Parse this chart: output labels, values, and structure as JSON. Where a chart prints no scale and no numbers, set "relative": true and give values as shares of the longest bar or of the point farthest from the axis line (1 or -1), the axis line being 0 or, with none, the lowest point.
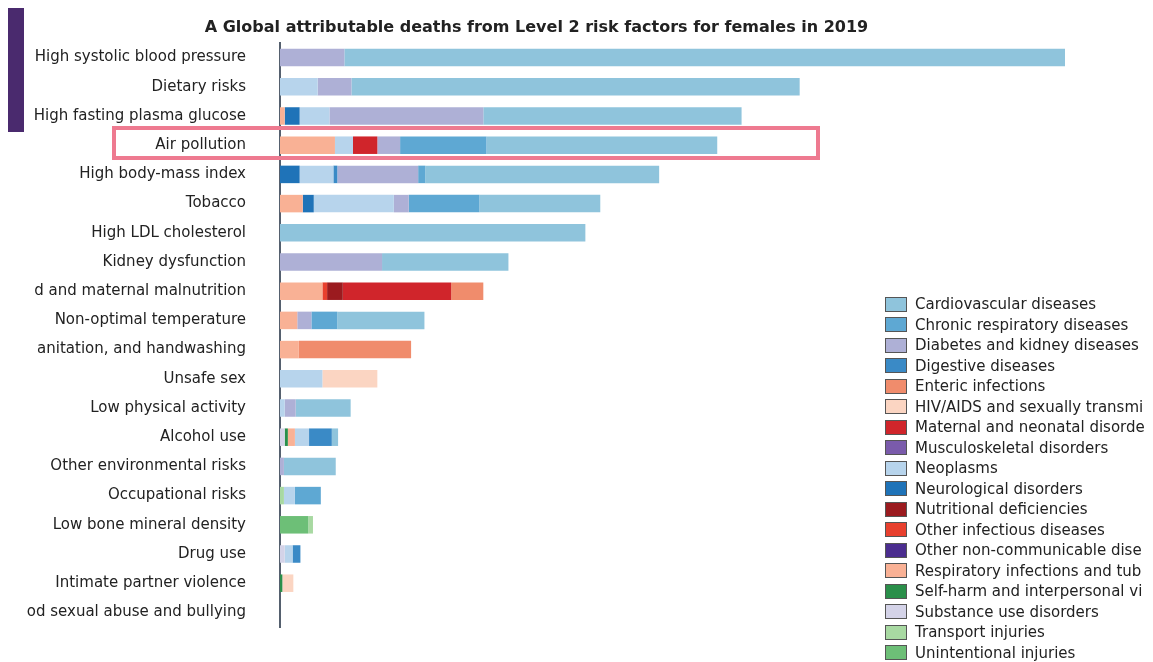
{
  "chart_data": {
    "type": "bar",
    "orientation": "horizontal",
    "stacked": true,
    "relative": true,
    "title": "A Global attributable deaths from Level 2 risk factors for females in 2019",
    "legend": "bottom right",
    "grid": false,
    "categories": [
      "High systolic blood pressure",
      "Dietary risks",
      "High fasting plasma glucose",
      "Air pollution",
      "High body-mass index",
      "Tobacco",
      "High LDL cholesterol",
      "Kidney dysfunction",
      "d and maternal malnutrition",
      "Non-optimal temperature",
      "anitation, and handwashing",
      "Unsafe sex",
      "Low physical activity",
      "Alcohol use",
      "Other environmental risks",
      "Occupational risks",
      "Low bone mineral density",
      "Drug use",
      "Intimate partner violence",
      "od sexual abuse and bullying"
    ],
    "series": [
      {
        "name": "Substance use disorders",
        "color": "#d4d3e8",
        "values": [
          null,
          null,
          null,
          null,
          null,
          null,
          null,
          null,
          null,
          null,
          null,
          null,
          null,
          0.006,
          null,
          null,
          null,
          0.006,
          null,
          null
        ]
      },
      {
        "name": "Self-harm and interpersonal vi",
        "color": "#2a8f4a",
        "values": [
          null,
          null,
          null,
          null,
          null,
          null,
          null,
          null,
          null,
          null,
          null,
          null,
          null,
          0.004,
          null,
          null,
          null,
          null,
          0.003,
          null
        ]
      },
      {
        "name": "Unintentional injuries",
        "color": "#6dbf77",
        "values": [
          null,
          null,
          null,
          null,
          null,
          null,
          null,
          null,
          null,
          null,
          null,
          null,
          null,
          null,
          null,
          null,
          0.036,
          null,
          null,
          null
        ]
      },
      {
        "name": "Transport injuries",
        "color": "#a8d9a2",
        "values": [
          null,
          null,
          null,
          null,
          null,
          null,
          null,
          null,
          null,
          null,
          null,
          null,
          null,
          null,
          null,
          0.005,
          0.006,
          null,
          null,
          null
        ]
      },
      {
        "name": "Respiratory infections and tub",
        "color": "#f9b195",
        "values": [
          null,
          null,
          0.006,
          0.07,
          null,
          0.029,
          null,
          null,
          0.054,
          0.022,
          0.024,
          null,
          null,
          0.009,
          null,
          null,
          null,
          null,
          null,
          null
        ]
      },
      {
        "name": "Other infectious diseases",
        "color": "#e8402e",
        "values": [
          null,
          null,
          null,
          null,
          null,
          null,
          null,
          null,
          0.006,
          null,
          null,
          null,
          null,
          null,
          null,
          null,
          null,
          null,
          null,
          null
        ]
      },
      {
        "name": "Nutritional deficiencies",
        "color": "#9b1b1f",
        "values": [
          null,
          null,
          null,
          null,
          null,
          null,
          null,
          null,
          0.02,
          null,
          null,
          null,
          null,
          null,
          null,
          null,
          null,
          null,
          null,
          null
        ]
      },
      {
        "name": "Neurological disorders",
        "color": "#1f73b8",
        "values": [
          null,
          null,
          0.019,
          null,
          0.025,
          0.014,
          null,
          null,
          null,
          null,
          null,
          null,
          null,
          null,
          null,
          null,
          null,
          null,
          null,
          null
        ]
      },
      {
        "name": "Neoplasms",
        "color": "#b7d4ec",
        "values": [
          null,
          0.048,
          0.038,
          0.023,
          0.043,
          0.102,
          null,
          null,
          null,
          null,
          null,
          0.054,
          0.006,
          0.018,
          null,
          0.014,
          null,
          0.01,
          null,
          null
        ]
      },
      {
        "name": "Digestive diseases",
        "color": "#3a8ac6",
        "values": [
          null,
          null,
          null,
          null,
          0.005,
          null,
          null,
          null,
          null,
          null,
          null,
          null,
          null,
          0.029,
          null,
          null,
          null,
          0.01,
          null,
          null
        ]
      },
      {
        "name": "Maternal and neonatal disorde",
        "color": "#d0252b",
        "values": [
          null,
          null,
          null,
          0.031,
          null,
          null,
          null,
          null,
          0.138,
          null,
          null,
          null,
          null,
          null,
          null,
          null,
          null,
          null,
          null,
          null
        ]
      },
      {
        "name": "HIV/AIDS and sexually transmi",
        "color": "#fbd5c2",
        "values": [
          null,
          null,
          null,
          null,
          null,
          null,
          null,
          null,
          null,
          null,
          null,
          0.07,
          null,
          null,
          null,
          null,
          null,
          null,
          0.014,
          null
        ]
      },
      {
        "name": "Enteric infections",
        "color": "#f08c6c",
        "values": [
          null,
          null,
          null,
          null,
          null,
          null,
          null,
          null,
          0.041,
          null,
          0.143,
          null,
          null,
          null,
          null,
          null,
          null,
          null,
          null,
          null
        ]
      },
      {
        "name": "Musculoskeletal disorders",
        "color": "#7a5bab",
        "values": [
          null,
          null,
          null,
          null,
          null,
          null,
          null,
          null,
          null,
          null,
          null,
          null,
          null,
          null,
          null,
          null,
          null,
          null,
          null,
          null
        ]
      },
      {
        "name": "Other non-communicable dise",
        "color": "#4b2d8f",
        "values": [
          null,
          null,
          null,
          null,
          null,
          null,
          null,
          null,
          null,
          null,
          null,
          null,
          null,
          null,
          null,
          null,
          null,
          null,
          null,
          null
        ]
      },
      {
        "name": "Diabetes and kidney diseases",
        "color": "#aeb0d6",
        "values": [
          0.082,
          0.043,
          0.196,
          0.029,
          0.103,
          0.019,
          null,
          0.13,
          null,
          0.018,
          null,
          null,
          0.014,
          null,
          0.005,
          null,
          null,
          null,
          null,
          null
        ]
      },
      {
        "name": "Chronic respiratory diseases",
        "color": "#5ea8d3",
        "values": [
          null,
          null,
          null,
          0.11,
          0.009,
          0.09,
          null,
          null,
          null,
          0.033,
          null,
          null,
          null,
          null,
          null,
          0.033,
          null,
          null,
          null,
          null
        ]
      },
      {
        "name": "Cardiovascular diseases",
        "color": "#8fc4dc",
        "values": [
          0.918,
          0.571,
          0.329,
          0.294,
          0.298,
          0.154,
          0.389,
          0.161,
          null,
          0.111,
          null,
          null,
          0.07,
          0.008,
          0.066,
          null,
          null,
          null,
          null,
          null
        ]
      }
    ]
  }
}
